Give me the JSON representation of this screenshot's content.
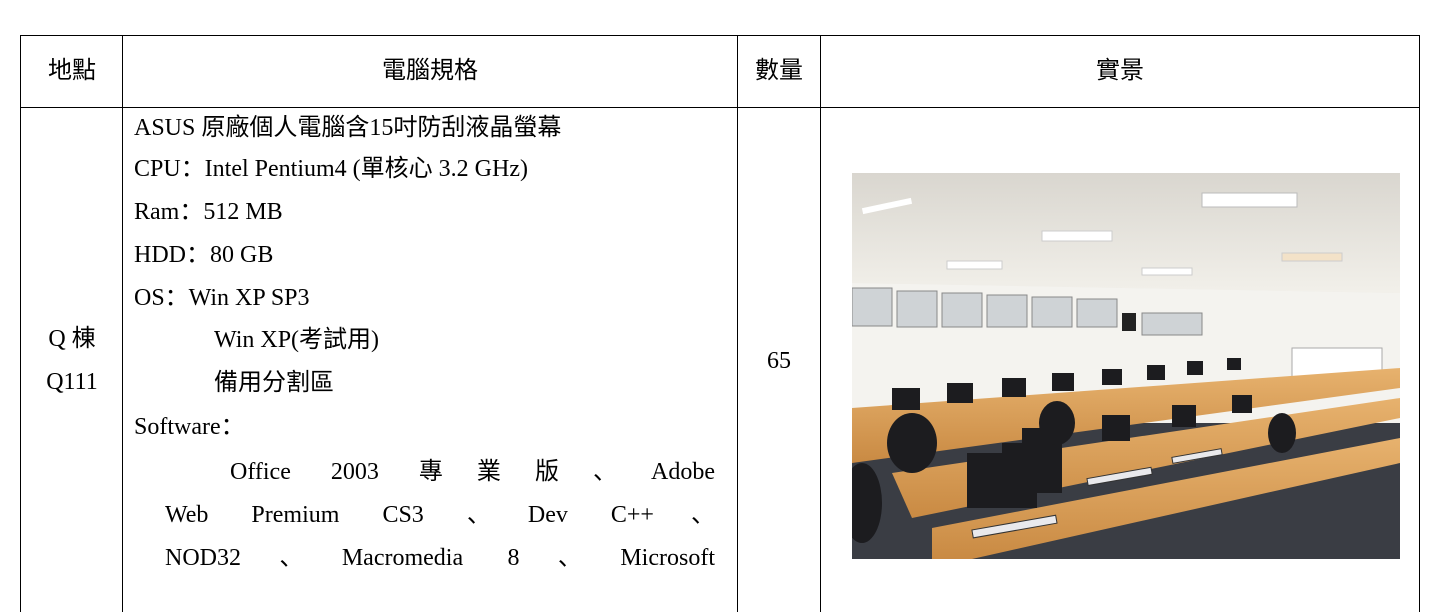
{
  "table": {
    "header": [
      "地點",
      "電腦規格",
      "數量",
      "實景"
    ],
    "rows": [
      {
        "location": [
          "Q 棟",
          "Q111"
        ],
        "spec": [
          "ASUS 原廠個人電腦含15吋防刮液晶螢幕",
          "CPU：Intel Pentium4 (單核心 3.2 GHz)",
          "Ram：512 MB",
          "HDD：80 GB",
          "OS：Win XP SP3",
          "Win XP(考試用)",
          "備用分割區",
          "Software："
        ],
        "software": [
          "Office 2003 專業版、Adobe",
          "Web Premium CS3 、Dev C++、",
          "NOD32、Macromedia 8、Microsoft"
        ],
        "quantity": 65
      }
    ]
  }
}
